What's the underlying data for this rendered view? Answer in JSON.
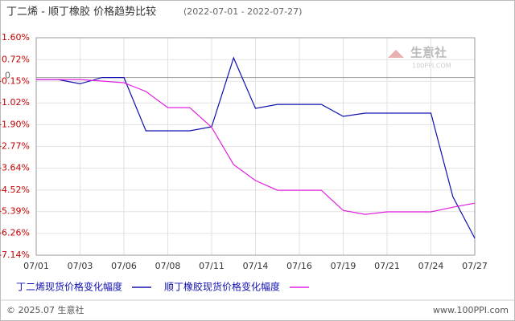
{
  "chart_data": {
    "type": "line",
    "title": "丁二烯 - 顺丁橡胶 价格趋势比较",
    "subtitle": "(2022-07-01 - 2022-07-27)",
    "categories": [
      "07/01",
      null,
      "07/03",
      null,
      "07/06",
      null,
      "07/08",
      null,
      "07/11",
      null,
      "07/14",
      null,
      "07/16",
      null,
      "07/19",
      null,
      "07/21",
      null,
      "07/24",
      null,
      "07/27"
    ],
    "series": [
      {
        "name": "丁二烯现货价格变化幅度",
        "color": "#1010b0",
        "values": [
          -0.08,
          -0.08,
          -0.25,
          0.0,
          0.0,
          -2.14,
          -2.14,
          -2.14,
          -1.98,
          0.79,
          -1.24,
          -1.08,
          -1.08,
          -1.08,
          -1.56,
          -1.43,
          -1.43,
          -1.43,
          -1.43,
          -4.79,
          -6.46
        ]
      },
      {
        "name": "顺丁橡胶现货价格变化幅度",
        "color": "#e020e0",
        "values": [
          -0.08,
          -0.08,
          -0.08,
          -0.14,
          -0.21,
          -0.56,
          -1.21,
          -1.21,
          -2.0,
          -3.5,
          -4.14,
          -4.53,
          -4.53,
          -4.53,
          -5.34,
          -5.5,
          -5.4,
          -5.4,
          -5.4,
          -5.21,
          -5.05
        ]
      }
    ],
    "ylim": [
      -7.14,
      1.6
    ],
    "yticks": [
      {
        "value": 1.6,
        "label": "1.60%"
      },
      {
        "value": 0.72,
        "label": "0.72%"
      },
      {
        "value": -0.15,
        "label": "-0.15%"
      },
      {
        "value": -1.02,
        "label": "-1.02%"
      },
      {
        "value": -1.9,
        "label": "-1.90%"
      },
      {
        "value": -2.77,
        "label": "-2.77%"
      },
      {
        "value": -3.64,
        "label": "-3.64%"
      },
      {
        "value": -4.52,
        "label": "-4.52%"
      },
      {
        "value": -5.39,
        "label": "-5.39%"
      },
      {
        "value": -6.26,
        "label": "-6.26%"
      },
      {
        "value": -7.14,
        "label": "-7.14%"
      }
    ],
    "baseline": 0,
    "grid": true,
    "legend": "bottom",
    "watermark": "生意社",
    "watermark_url": "100PPI.COM",
    "footer_left": "© 2025.07 生意社",
    "footer_right": "www.100PPI.com"
  }
}
